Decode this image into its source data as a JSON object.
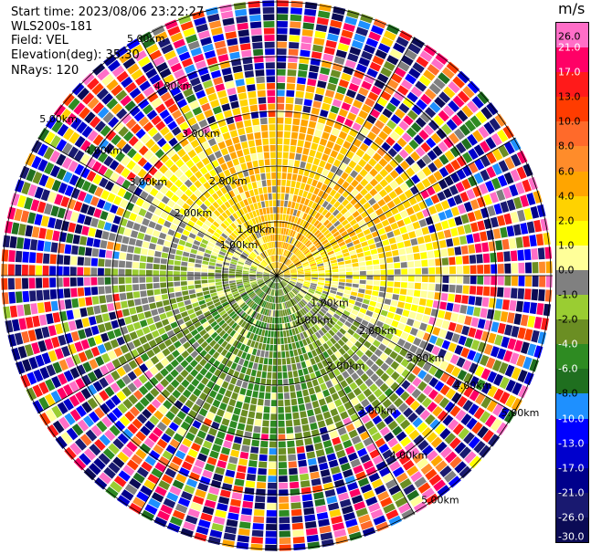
{
  "header": {
    "start_time": "Start time: 2023/08/06 23:22:27",
    "instrument": "WLS200s-181",
    "field": "Field: VEL",
    "elevation": "Elevation(deg): 35.30",
    "nrays": "NRays: 120"
  },
  "colorbar": {
    "unit": "m/s",
    "ticks": [
      "26.0",
      "21.0",
      "17.0",
      "13.0",
      "10.0",
      "8.0",
      "6.0",
      "4.0",
      "2.0",
      "1.0",
      "0.0",
      "-1.0",
      "-2.0",
      "-4.0",
      "-6.0",
      "-8.0",
      "-10.0",
      "-13.0",
      "-17.0",
      "-21.0",
      "-26.0",
      "-30.0"
    ],
    "colors": [
      "#ff6ec7",
      "#ff0066",
      "#ff1a1a",
      "#ff3c00",
      "#ff6a2a",
      "#ff8c2a",
      "#ffa500",
      "#ffd200",
      "#ffff00",
      "#ffff99",
      "#808080",
      "#9acd32",
      "#6b8e23",
      "#2e8b22",
      "#1f6f1f",
      "#1e90ff",
      "#0000ff",
      "#0000cd",
      "#00008b",
      "#191970",
      "#0b0b55"
    ]
  },
  "ppi": {
    "range_rings": [
      "1.00km",
      "2.00km",
      "3.00km",
      "4.00km",
      "5.00km"
    ]
  }
}
